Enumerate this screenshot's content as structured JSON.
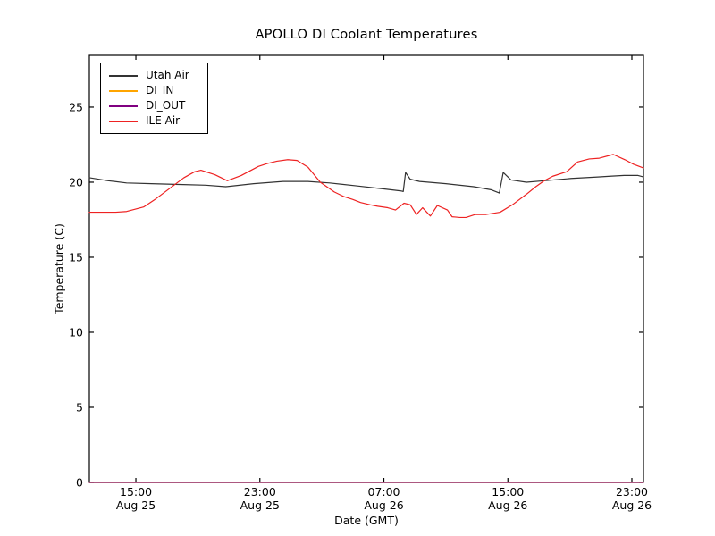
{
  "title": "APOLLO DI Coolant Temperatures",
  "chart_data": {
    "type": "line",
    "title": "APOLLO DI Coolant Temperatures",
    "xlabel": "Date (GMT)",
    "ylabel": "Temperature (C)",
    "x_unit": "hours since Aug 25 00:00 GMT",
    "xlim": [
      12.0,
      47.75
    ],
    "ylim": [
      0,
      28.45
    ],
    "grid": false,
    "legend_position": "upper left",
    "yticks": [
      0,
      5,
      10,
      15,
      20,
      25
    ],
    "xticks": [
      {
        "hour": 15,
        "time": "15:00",
        "date": "Aug 25"
      },
      {
        "hour": 23,
        "time": "23:00",
        "date": "Aug 25"
      },
      {
        "hour": 31,
        "time": "07:00",
        "date": "Aug 26"
      },
      {
        "hour": 39,
        "time": "15:00",
        "date": "Aug 26"
      },
      {
        "hour": 47,
        "time": "23:00",
        "date": "Aug 26"
      }
    ],
    "series": [
      {
        "name": "Utah Air",
        "color": "#333333",
        "points": [
          [
            12.0,
            20.3
          ],
          [
            13.2,
            20.1
          ],
          [
            14.4,
            19.95
          ],
          [
            16.0,
            19.9
          ],
          [
            17.8,
            19.85
          ],
          [
            19.5,
            19.8
          ],
          [
            20.8,
            19.7
          ],
          [
            22.6,
            19.9
          ],
          [
            24.5,
            20.05
          ],
          [
            26.1,
            20.05
          ],
          [
            27.5,
            19.95
          ],
          [
            29.3,
            19.75
          ],
          [
            31.0,
            19.55
          ],
          [
            32.1,
            19.42
          ],
          [
            32.25,
            19.38
          ],
          [
            32.4,
            20.65
          ],
          [
            32.7,
            20.2
          ],
          [
            33.3,
            20.05
          ],
          [
            35.0,
            19.9
          ],
          [
            36.8,
            19.7
          ],
          [
            37.9,
            19.5
          ],
          [
            38.45,
            19.28
          ],
          [
            38.7,
            20.65
          ],
          [
            39.2,
            20.15
          ],
          [
            40.2,
            20.0
          ],
          [
            41.35,
            20.1
          ],
          [
            43.1,
            20.25
          ],
          [
            44.8,
            20.35
          ],
          [
            45.6,
            20.4
          ],
          [
            46.5,
            20.45
          ],
          [
            47.4,
            20.45
          ],
          [
            47.75,
            20.35
          ]
        ]
      },
      {
        "name": "DI_IN",
        "color": "#ffa500",
        "points": [
          [
            12.0,
            0.0
          ],
          [
            47.75,
            0.0
          ]
        ]
      },
      {
        "name": "DI_OUT",
        "color": "#800080",
        "points": [
          [
            12.0,
            0.0
          ],
          [
            47.75,
            0.0
          ]
        ]
      },
      {
        "name": "ILE Air",
        "color": "#ee2222",
        "points": [
          [
            12.0,
            18.0
          ],
          [
            13.7,
            18.0
          ],
          [
            14.4,
            18.05
          ],
          [
            15.5,
            18.35
          ],
          [
            16.3,
            18.9
          ],
          [
            17.2,
            19.6
          ],
          [
            18.1,
            20.3
          ],
          [
            18.8,
            20.7
          ],
          [
            19.2,
            20.8
          ],
          [
            20.1,
            20.5
          ],
          [
            20.9,
            20.1
          ],
          [
            21.8,
            20.45
          ],
          [
            22.9,
            21.05
          ],
          [
            23.5,
            21.25
          ],
          [
            24.1,
            21.4
          ],
          [
            24.8,
            21.5
          ],
          [
            25.4,
            21.45
          ],
          [
            26.1,
            21.0
          ],
          [
            26.9,
            20.0
          ],
          [
            27.8,
            19.35
          ],
          [
            28.4,
            19.05
          ],
          [
            29.0,
            18.85
          ],
          [
            29.5,
            18.65
          ],
          [
            30.1,
            18.5
          ],
          [
            30.6,
            18.4
          ],
          [
            31.25,
            18.3
          ],
          [
            31.75,
            18.15
          ],
          [
            32.3,
            18.6
          ],
          [
            32.7,
            18.5
          ],
          [
            33.1,
            17.85
          ],
          [
            33.5,
            18.3
          ],
          [
            34.0,
            17.75
          ],
          [
            34.45,
            18.45
          ],
          [
            35.1,
            18.15
          ],
          [
            35.4,
            17.7
          ],
          [
            35.9,
            17.65
          ],
          [
            36.3,
            17.65
          ],
          [
            36.9,
            17.85
          ],
          [
            37.6,
            17.85
          ],
          [
            38.5,
            18.0
          ],
          [
            39.3,
            18.5
          ],
          [
            40.2,
            19.2
          ],
          [
            40.8,
            19.7
          ],
          [
            41.35,
            20.1
          ],
          [
            41.9,
            20.4
          ],
          [
            42.8,
            20.7
          ],
          [
            43.5,
            21.35
          ],
          [
            44.25,
            21.55
          ],
          [
            44.9,
            21.6
          ],
          [
            45.8,
            21.85
          ],
          [
            46.55,
            21.5
          ],
          [
            47.1,
            21.2
          ],
          [
            47.75,
            20.95
          ]
        ]
      }
    ]
  }
}
